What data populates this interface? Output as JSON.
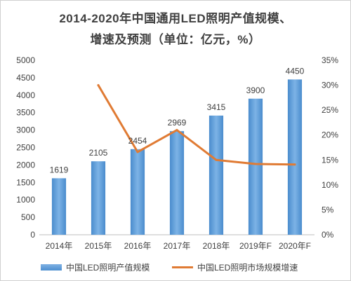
{
  "title": {
    "line1": "2014-2020年中国通用LED照明产值规模、",
    "line2": "增速及预测（单位：亿元，%）"
  },
  "chart_data": {
    "type": "bar",
    "categories": [
      "2014年",
      "2015年",
      "2016年",
      "2017年",
      "2018年",
      "2019年F",
      "2020年F"
    ],
    "series": [
      {
        "name": "中国LED照明产值规模",
        "type": "bar",
        "axis": "left",
        "values": [
          1619,
          2105,
          2454,
          2969,
          3415,
          3900,
          4450
        ],
        "color": "#5b9bd5"
      },
      {
        "name": "中国LED照明市场规模增速",
        "type": "line",
        "axis": "right",
        "values": [
          null,
          30.0,
          16.6,
          21.0,
          15.0,
          14.2,
          14.1
        ],
        "color": "#e07b34"
      }
    ],
    "y_left": {
      "min": 0,
      "max": 5000,
      "step": 500,
      "ticks": [
        "0",
        "500",
        "1000",
        "1500",
        "2000",
        "2500",
        "3000",
        "3500",
        "4000",
        "4500",
        "5000"
      ]
    },
    "y_right": {
      "min": 0,
      "max": 35,
      "step": 5,
      "ticks": [
        "0%",
        "5%",
        "10%",
        "15%",
        "20%",
        "25%",
        "30%",
        "35%"
      ]
    },
    "data_labels": [
      "1619",
      "2105",
      "2454",
      "2969",
      "3415",
      "3900",
      "4450"
    ],
    "grid": false,
    "legend_position": "bottom"
  },
  "legend": {
    "bar_label": "中国LED照明产值规模",
    "line_label": "中国LED照明市场规模增速"
  },
  "colors": {
    "bar": "#5b9bd5",
    "line": "#e07b34",
    "text": "#404040",
    "axis": "#bfbfbf"
  }
}
